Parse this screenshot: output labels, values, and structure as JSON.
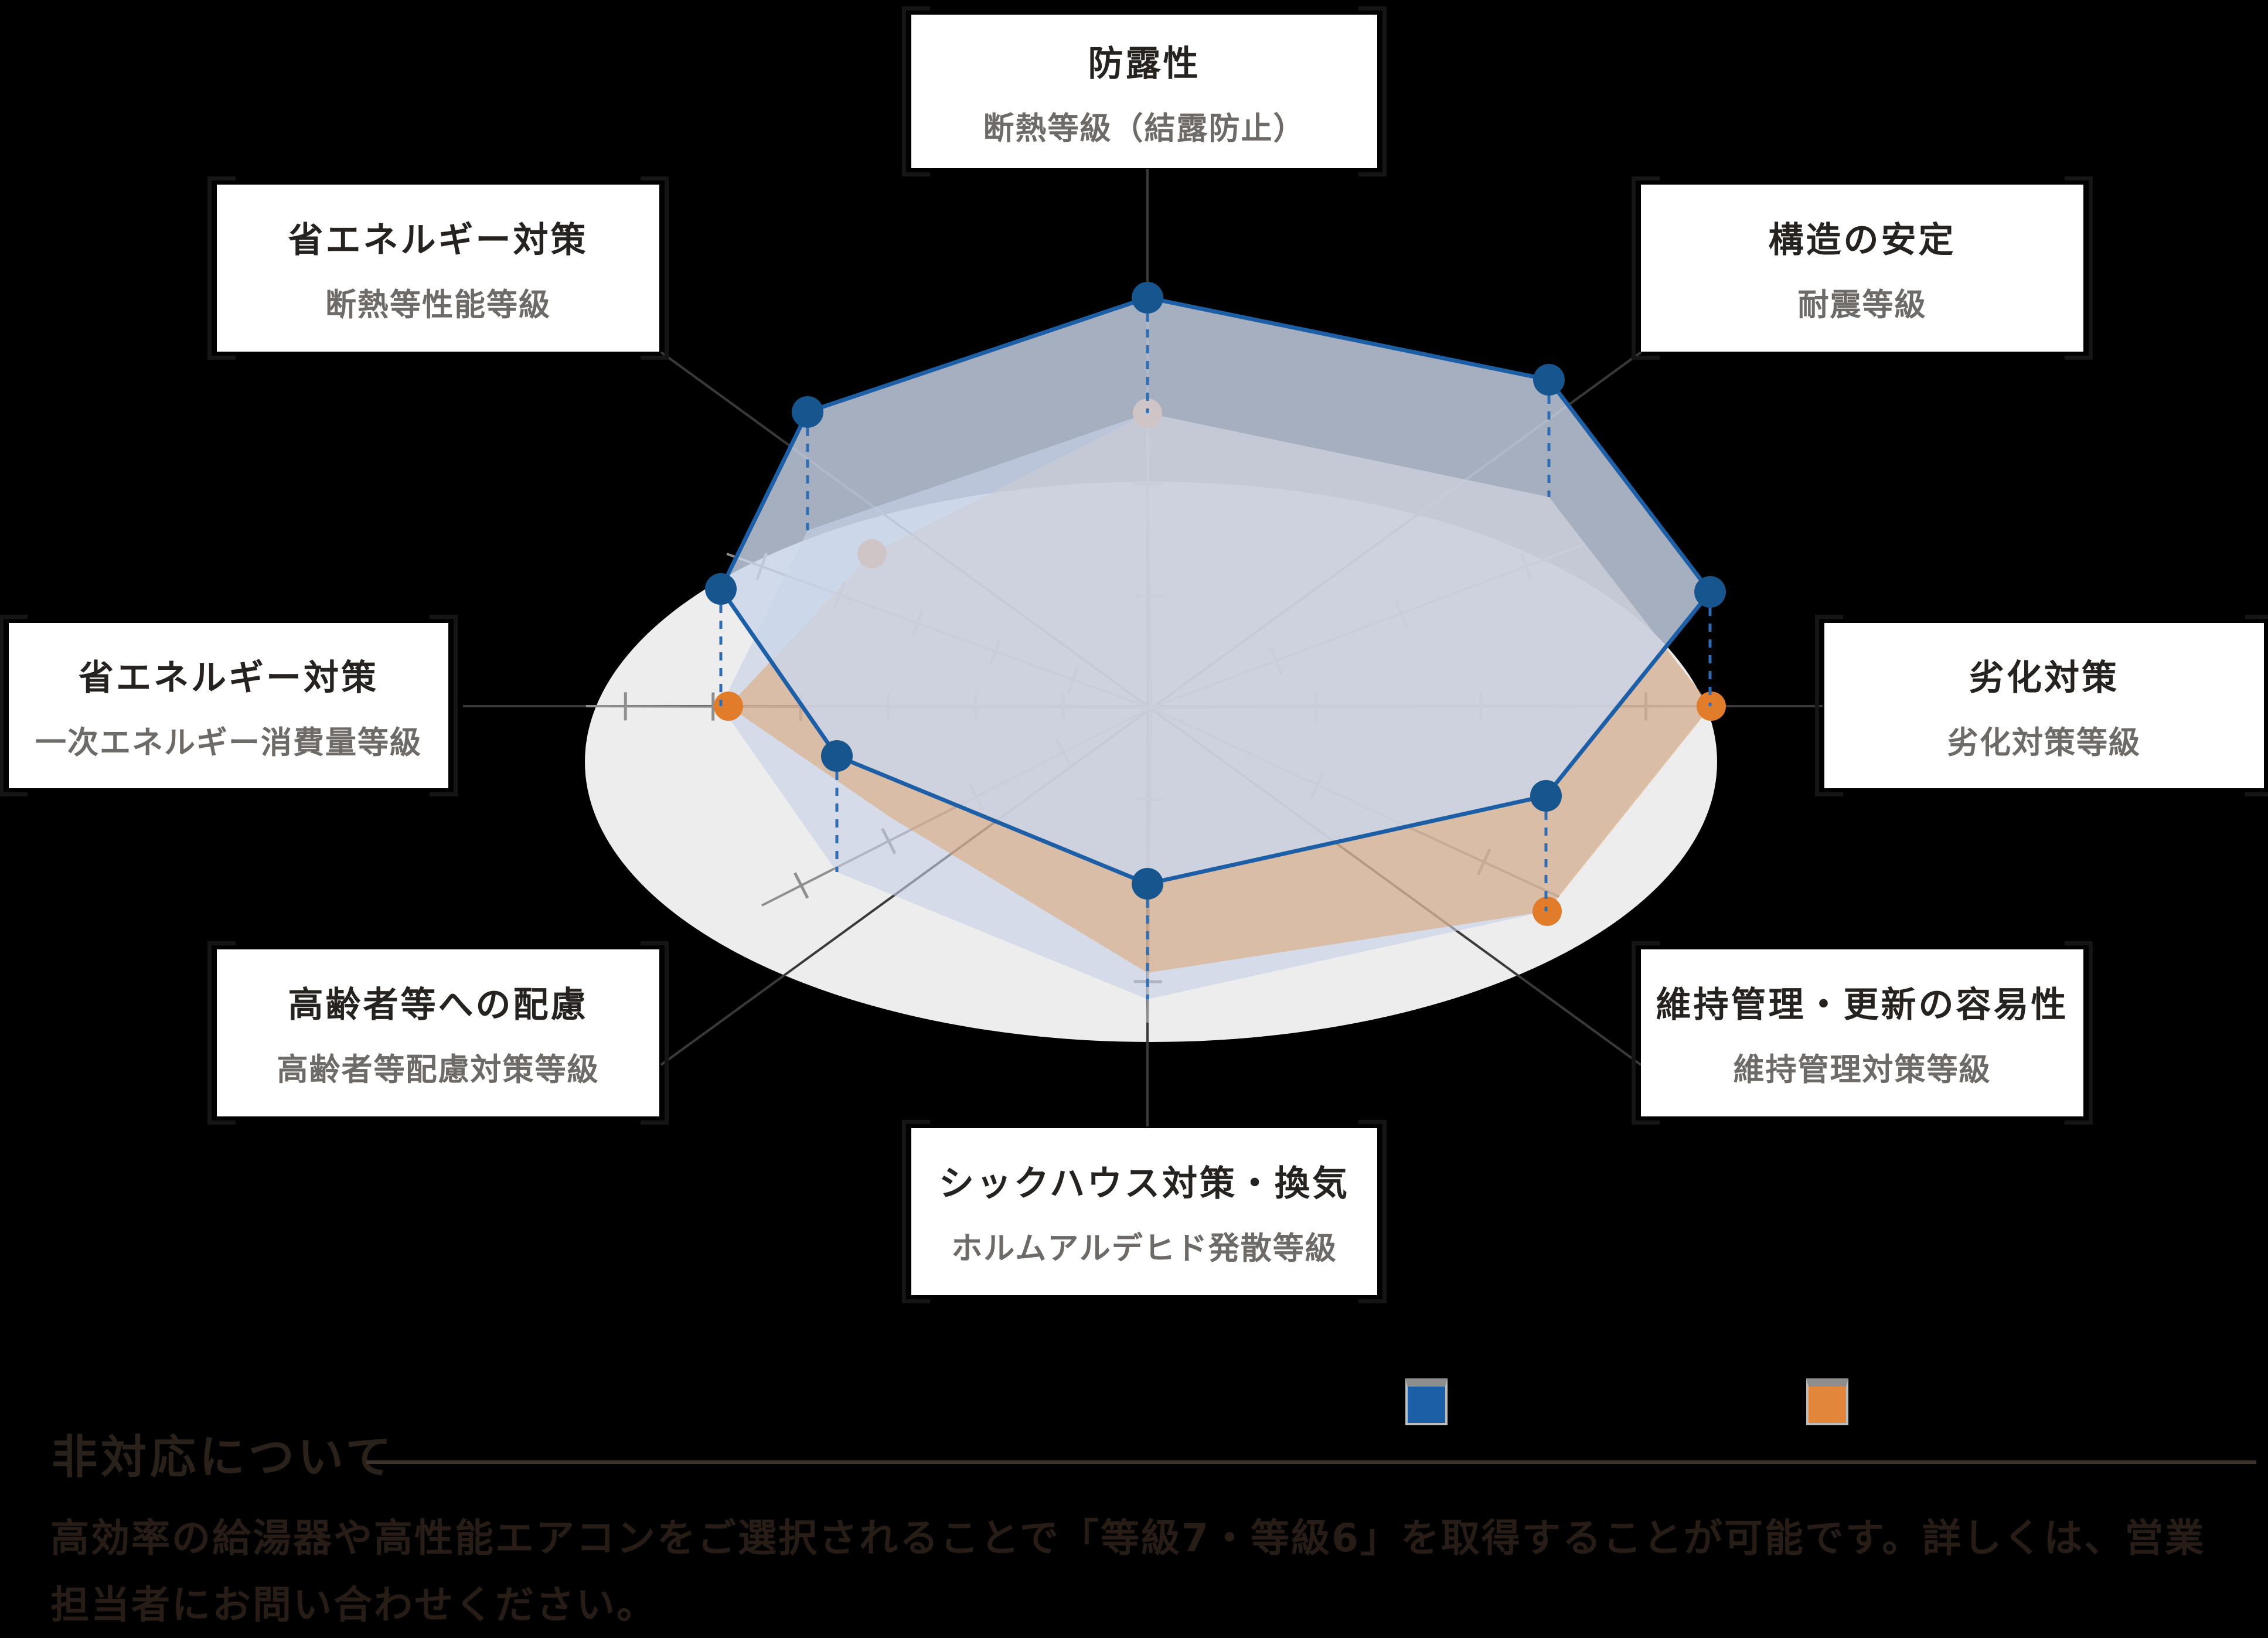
{
  "chart_data": {
    "type": "radar",
    "title": "",
    "axes": [
      {
        "position": "top",
        "title": "防露性",
        "grade_label": "断熱等級（結露防止）"
      },
      {
        "position": "top-right",
        "title": "構造の安定",
        "grade_label": "耐震等級"
      },
      {
        "position": "right",
        "title": "劣化対策",
        "grade_label": "劣化対策等級"
      },
      {
        "position": "bottom-right",
        "title": "維持管理・更新の容易性",
        "grade_label": "維持管理対策等級"
      },
      {
        "position": "bottom",
        "title": "シックハウス対策・換気",
        "grade_label": "ホルムアルデヒド発散等級"
      },
      {
        "position": "bottom-left",
        "title": "高齢者等への配慮",
        "grade_label": "高齢者等配慮対策等級"
      },
      {
        "position": "left",
        "title": "省エネルギー対策",
        "grade_label": "一次エネルギー消費量等級"
      },
      {
        "position": "top-left",
        "title": "省エネルギー対策",
        "grade_label": "断熱等性能等級"
      }
    ],
    "series": [
      {
        "name": "series-blue",
        "color": "#1d5fa6",
        "fill": "rgba(203,214,234,0.82)",
        "dot_color": "#17558e"
      },
      {
        "name": "series-orange",
        "color": "#e07c2a",
        "fill": "rgba(223,160,100,0.50)",
        "dot_color": "#e07c2a"
      }
    ],
    "blue_points": [
      [
        1958,
        508
      ],
      [
        2643,
        648
      ],
      [
        2918,
        1010
      ],
      [
        2638,
        1358
      ],
      [
        1958,
        1508
      ],
      [
        1428,
        1290
      ],
      [
        1230,
        1005
      ],
      [
        1378,
        703
      ]
    ],
    "feet_points": [
      [
        1958,
        705
      ],
      [
        2643,
        848
      ],
      [
        2918,
        1205
      ],
      [
        2638,
        1555
      ],
      [
        1958,
        1705
      ],
      [
        1428,
        1488
      ],
      [
        1230,
        1205
      ],
      [
        1378,
        905
      ]
    ],
    "orange_points": [
      [
        1958,
        705
      ],
      [
        2643,
        848
      ],
      [
        2920,
        1205
      ],
      [
        2640,
        1555
      ],
      [
        1958,
        1660
      ],
      [
        1520,
        1395
      ],
      [
        1243,
        1205
      ],
      [
        1488,
        945
      ]
    ],
    "orange_dot_indices": [
      0,
      2,
      3,
      6,
      7
    ],
    "plane_color": "#ededed",
    "feet_fill": "rgba(197,207,228,0.60)",
    "axis_line_color": "#8f8f8f",
    "leader_line_color": "#3a3a3a",
    "legend_position": "bottom-right"
  },
  "note": {
    "heading": "非対応について",
    "body": "高効率の給湯器や高性能エアコンをご選択されることで「等級7・等級6」を取得することが可能です。詳しくは、営業担当者にお問い合わせください。"
  }
}
